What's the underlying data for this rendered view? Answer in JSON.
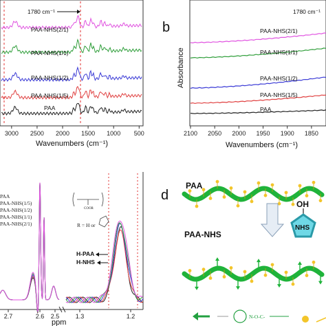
{
  "panels": {
    "a": {
      "annotation": "1780 cm⁻¹",
      "xlabel": "Wavenumbers (cm⁻¹)",
      "ticks": [
        "3000",
        "2500",
        "2000",
        "1500",
        "1000",
        "500"
      ],
      "tick_values": [
        3000,
        2500,
        2000,
        1500,
        1000,
        500
      ],
      "series": [
        {
          "name": "PAA-NHS(2/1)",
          "color": "#e052e0"
        },
        {
          "name": "PAA-NHS(1/1)",
          "color": "#2f9e3a"
        },
        {
          "name": "PAA-NHS(1/2)",
          "color": "#3a3ad6"
        },
        {
          "name": "PAA-NHS(1/5)",
          "color": "#e04040"
        },
        {
          "name": "PAA",
          "color": "#222222"
        }
      ]
    },
    "b": {
      "letter": "b",
      "annotation": "1780 cm⁻¹",
      "ylabel": "Absorbance",
      "xlabel": "Wavenumbers (cm⁻¹)",
      "ticks": [
        "2100",
        "2050",
        "2000",
        "1950",
        "1900",
        "1850"
      ],
      "tick_values": [
        2100,
        2050,
        2000,
        1950,
        1900,
        1850
      ],
      "series": [
        {
          "name": "PAA-NHS(2/1)",
          "color": "#e052e0"
        },
        {
          "name": "PAA-NHS(1/1)",
          "color": "#2f9e3a"
        },
        {
          "name": "PAA-NHS(1/2)",
          "color": "#3a3ad6"
        },
        {
          "name": "PAA-NHS(1/5)",
          "color": "#e04040"
        },
        {
          "name": "PAA",
          "color": "#222222"
        }
      ]
    },
    "c": {
      "xlabel": "ppm",
      "ticks": [
        "2.7",
        "2.6",
        "2.5",
        "1.3",
        "1.2"
      ],
      "legend": [
        "PAA",
        "PAA-NHS(1/5)",
        "PAA-NHS(1/2)",
        "PAA-NHS(1/1)",
        "PAA-NHS(2/1)"
      ],
      "r_label": "R = H or",
      "hpaa": "H-PAA",
      "hnhs": "H-NHS"
    },
    "d": {
      "letter": "d",
      "paa": "PAA",
      "paa_nhs": "PAA-NHS",
      "oh": "OH",
      "nhs": "NHS"
    }
  },
  "chart_data": [
    {
      "type": "line",
      "xlabel": "Wavenumbers (cm⁻¹)",
      "xlim": [
        3200,
        450
      ],
      "series": [
        "PAA-NHS(2/1)",
        "PAA-NHS(1/1)",
        "PAA-NHS(1/2)",
        "PAA-NHS(1/5)",
        "PAA"
      ]
    },
    {
      "type": "line",
      "xlabel": "Wavenumbers (cm⁻¹)",
      "ylabel": "Absorbance",
      "xlim": [
        2100,
        1820
      ],
      "series": [
        "PAA-NHS(2/1)",
        "PAA-NHS(1/1)",
        "PAA-NHS(1/2)",
        "PAA-NHS(1/5)",
        "PAA"
      ]
    },
    {
      "type": "line",
      "xlabel": "ppm",
      "series": [
        "PAA",
        "PAA-NHS(1/5)",
        "PAA-NHS(1/2)",
        "PAA-NHS(1/1)",
        "PAA-NHS(2/1)"
      ]
    }
  ]
}
